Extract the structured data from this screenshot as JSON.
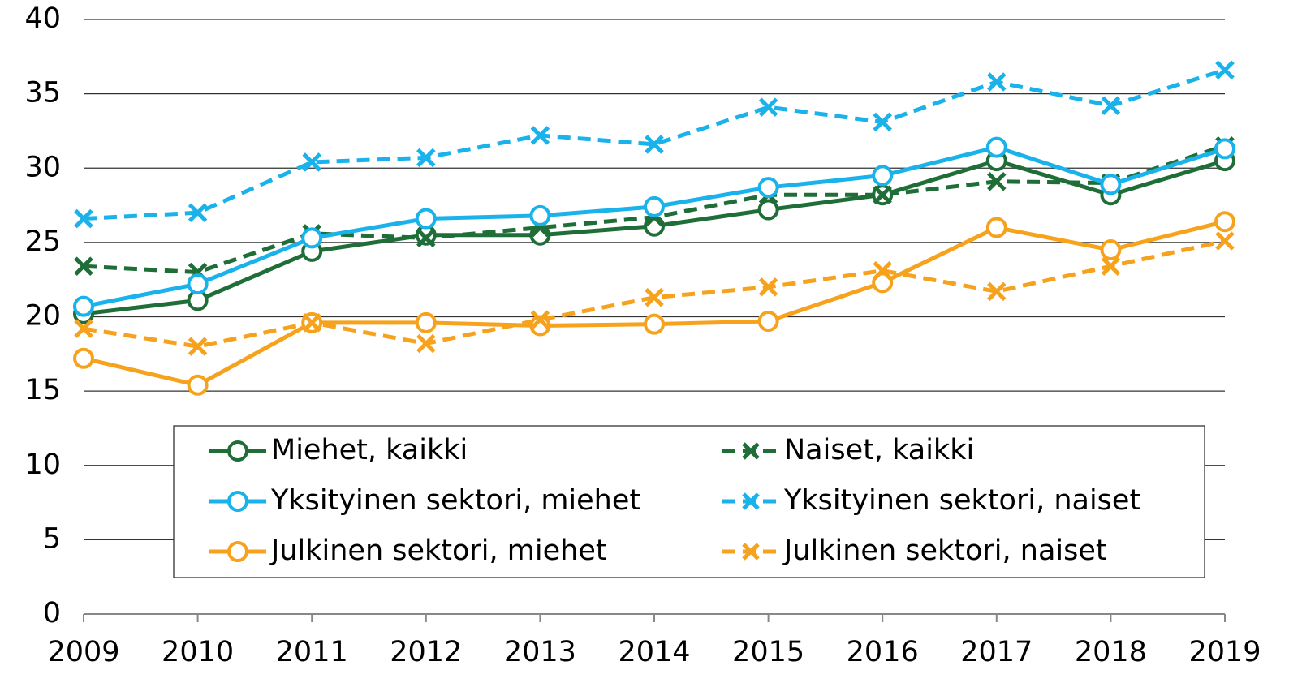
{
  "chart_data": {
    "type": "line",
    "categories": [
      "2009",
      "2010",
      "2011",
      "2012",
      "2013",
      "2014",
      "2015",
      "2016",
      "2017",
      "2018",
      "2019"
    ],
    "series": [
      {
        "name": "Miehet, kaikki",
        "color": "#1f6e38",
        "dashed": false,
        "marker": "circle",
        "values": [
          20.2,
          21.1,
          24.4,
          25.5,
          25.5,
          26.1,
          27.2,
          28.2,
          30.5,
          28.2,
          30.5
        ]
      },
      {
        "name": "Naiset, kaikki",
        "color": "#1f6e38",
        "dashed": true,
        "marker": "x",
        "values": [
          23.4,
          23.0,
          25.6,
          25.3,
          26.0,
          26.7,
          28.2,
          28.2,
          29.1,
          29.0,
          31.5
        ]
      },
      {
        "name": "Yksityinen sektori, miehet",
        "color": "#1ab2ea",
        "dashed": false,
        "marker": "circle",
        "values": [
          20.7,
          22.2,
          25.3,
          26.6,
          26.8,
          27.4,
          28.7,
          29.5,
          31.4,
          28.9,
          31.3
        ]
      },
      {
        "name": "Yksityinen sektori, naiset",
        "color": "#1ab2ea",
        "dashed": true,
        "marker": "x",
        "values": [
          26.6,
          27.0,
          30.4,
          30.7,
          32.2,
          31.6,
          34.1,
          33.1,
          35.8,
          34.2,
          36.6
        ]
      },
      {
        "name": "Julkinen sektori, miehet",
        "color": "#f6a21c",
        "dashed": false,
        "marker": "circle",
        "values": [
          17.2,
          15.4,
          19.6,
          19.6,
          19.4,
          19.5,
          19.7,
          22.3,
          26.0,
          24.5,
          26.4
        ]
      },
      {
        "name": "Julkinen sektori, naiset",
        "color": "#f6a21c",
        "dashed": true,
        "marker": "x",
        "values": [
          19.2,
          18.0,
          19.6,
          18.2,
          19.8,
          21.3,
          22.0,
          23.1,
          21.7,
          23.4,
          25.1
        ]
      }
    ],
    "ylim": [
      0,
      40
    ],
    "yticks": [
      0,
      5,
      10,
      15,
      20,
      25,
      30,
      35,
      40
    ],
    "grid": true
  }
}
